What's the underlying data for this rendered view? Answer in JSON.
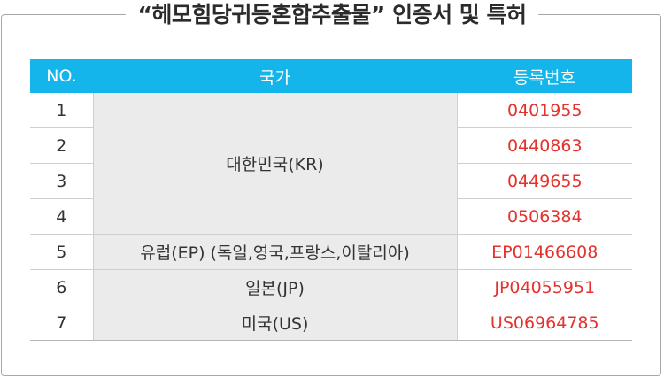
{
  "title": "“헤모힘당귀등혼합추출물” 인증서 및 특허",
  "headers": {
    "no": "NO.",
    "country": "국가",
    "reg": "등록번호"
  },
  "rows": [
    {
      "no": "1",
      "country": "대한민국(KR)",
      "reg": "0401955"
    },
    {
      "no": "2",
      "country": "",
      "reg": "0440863"
    },
    {
      "no": "3",
      "country": "",
      "reg": "0449655"
    },
    {
      "no": "4",
      "country": "",
      "reg": "0506384"
    },
    {
      "no": "5",
      "country": "유럽(EP) (독일,영국,프랑스,이탈리아)",
      "reg": "EP01466608"
    },
    {
      "no": "6",
      "country": "일본(JP)",
      "reg": "JP04055951"
    },
    {
      "no": "7",
      "country": "미국(US)",
      "reg": "US06964785"
    }
  ],
  "colors": {
    "header_bg": "#13b5ea",
    "reg_text": "#e5322d",
    "country_bg": "#ebebeb"
  }
}
